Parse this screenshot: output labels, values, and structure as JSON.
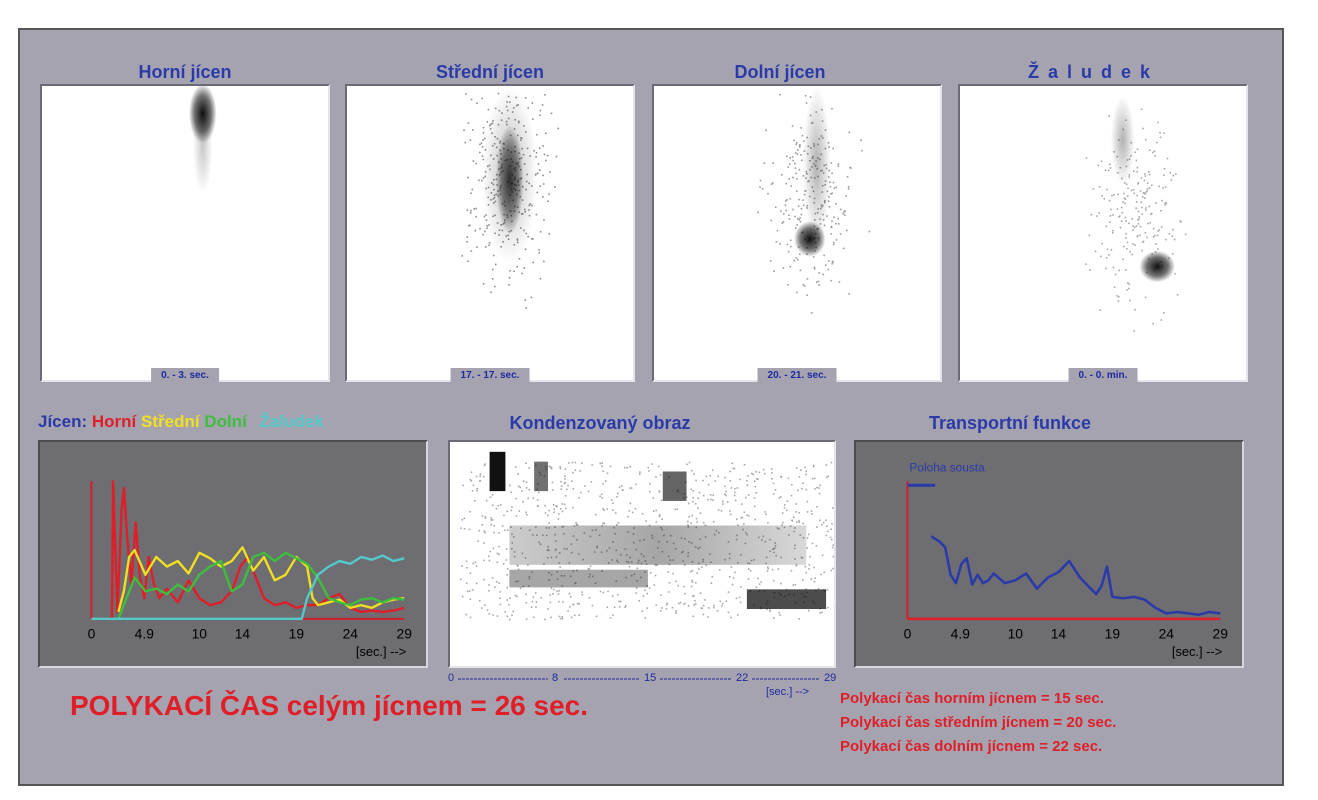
{
  "panels": [
    {
      "title": "Horní jícen",
      "range": "0. - 3. sec."
    },
    {
      "title": "Střední jícen",
      "range": "17. - 17. sec."
    },
    {
      "title": "Dolní jícen",
      "range": "20. - 21. sec."
    },
    {
      "title": "Ž a l u d e k",
      "range": "0. - 0. min."
    }
  ],
  "legend": {
    "prefix": "Jícen:",
    "items": [
      {
        "label": "Horní",
        "color": "#e01e28"
      },
      {
        "label": "Střední",
        "color": "#f0e020"
      },
      {
        "label": "Dolní",
        "color": "#3dbf3d"
      },
      {
        "label": "Žaludek",
        "color": "#54c9c9"
      }
    ]
  },
  "condensed": {
    "title": "Kondenzovaný obraz",
    "axis_ticks": [
      "0",
      "8",
      "15",
      "22",
      "29"
    ],
    "axis_unit": "[sec.] -->"
  },
  "transport": {
    "title": "Transportní funkce"
  },
  "summary": {
    "total": "POLYKACÍ ČAS celým jícnem  =   26 sec.",
    "lines": [
      "Polykací čas horním jícnem   = 15 sec.",
      "Polykací čas středním jícnem   = 20 sec.",
      "Polykací čas dolním jícnem    = 22 sec."
    ]
  },
  "chart_data": [
    {
      "type": "line",
      "xlabel": "[sec.] -->",
      "x_ticks": [
        "0",
        "4.9",
        "10",
        "14",
        "19",
        "24",
        "29"
      ],
      "xlim": [
        0,
        29
      ],
      "ylim": [
        0,
        1
      ],
      "series": [
        {
          "name": "Horní",
          "color": "#e01e28",
          "x": [
            0,
            1.5,
            1.9,
            2.0,
            2.4,
            2.8,
            3.0,
            3.3,
            3.7,
            4.1,
            4.5,
            4.9,
            5.3,
            5.8,
            6.3,
            7,
            8,
            9,
            10,
            11,
            12,
            13,
            13.8,
            14.5,
            15,
            16,
            17,
            18,
            19,
            20,
            21,
            22,
            23,
            24,
            25,
            26,
            27,
            28,
            29
          ],
          "y": [
            0,
            0,
            0.0,
            1.0,
            0.05,
            0.8,
            0.95,
            0.6,
            0.25,
            0.7,
            0.3,
            0.15,
            0.45,
            0.25,
            0.15,
            0.22,
            0.12,
            0.28,
            0.15,
            0.1,
            0.12,
            0.2,
            0.38,
            0.45,
            0.35,
            0.15,
            0.1,
            0.12,
            0.08,
            0.1,
            0.1,
            0.15,
            0.18,
            0.08,
            0.05,
            0.06,
            0.05,
            0.06,
            0.08
          ]
        },
        {
          "name": "Střední",
          "color": "#f0e020",
          "x": [
            2.5,
            3,
            3.5,
            4,
            5,
            6,
            7,
            8,
            9,
            10,
            11,
            12,
            13,
            14,
            15,
            16,
            17,
            18,
            19,
            20,
            20.5,
            21,
            22,
            23,
            24,
            25,
            26,
            27,
            28,
            29
          ],
          "y": [
            0.05,
            0.2,
            0.45,
            0.5,
            0.32,
            0.45,
            0.38,
            0.42,
            0.33,
            0.48,
            0.44,
            0.38,
            0.42,
            0.52,
            0.35,
            0.45,
            0.28,
            0.32,
            0.45,
            0.38,
            0.15,
            0.1,
            0.12,
            0.14,
            0.08,
            0.1,
            0.08,
            0.12,
            0.14,
            0.15
          ]
        },
        {
          "name": "Dolní",
          "color": "#3dbf3d",
          "x": [
            2.5,
            3,
            4,
            5,
            6,
            7,
            8,
            9,
            10,
            11,
            12,
            13,
            14,
            15,
            16,
            17,
            18,
            19,
            20,
            21,
            22,
            23,
            24,
            25,
            26,
            27,
            28,
            29
          ],
          "y": [
            0.0,
            0.1,
            0.3,
            0.2,
            0.22,
            0.18,
            0.25,
            0.2,
            0.32,
            0.38,
            0.42,
            0.2,
            0.25,
            0.45,
            0.48,
            0.42,
            0.48,
            0.44,
            0.4,
            0.3,
            0.15,
            0.12,
            0.1,
            0.14,
            0.15,
            0.12,
            0.15,
            0.14
          ]
        },
        {
          "name": "Žaludek",
          "color": "#54c9c9",
          "x": [
            0,
            19.5,
            20,
            21,
            22,
            23,
            24,
            25,
            26,
            27,
            28,
            29
          ],
          "y": [
            0,
            0.0,
            0.15,
            0.32,
            0.38,
            0.42,
            0.4,
            0.45,
            0.43,
            0.46,
            0.42,
            0.44
          ]
        }
      ]
    },
    {
      "type": "line",
      "xlabel": "[sec.] -->",
      "x_ticks": [
        "0",
        "4.9",
        "10",
        "14",
        "19",
        "24",
        "29"
      ],
      "xlim": [
        0,
        29
      ],
      "ylim": [
        0,
        1
      ],
      "annotation": "Poloha sousta",
      "series": [
        {
          "name": "Poloha sousta",
          "color": "#2a3aa8",
          "x": [
            2.2,
            3.0,
            3.5,
            4.0,
            4.5,
            5.0,
            5.5,
            6.0,
            6.5,
            7.0,
            7.5,
            8.0,
            9.0,
            10.0,
            11.0,
            12.0,
            13.0,
            14.0,
            15.0,
            16.0,
            17.0,
            17.5,
            18.0,
            18.5,
            19.0,
            20.0,
            21.0,
            22.0,
            23.0,
            24.0,
            25.0,
            26.0,
            27.0,
            28.0,
            29.0
          ],
          "y": [
            0.6,
            0.56,
            0.52,
            0.32,
            0.26,
            0.4,
            0.44,
            0.25,
            0.32,
            0.26,
            0.28,
            0.33,
            0.26,
            0.28,
            0.33,
            0.22,
            0.3,
            0.34,
            0.42,
            0.3,
            0.22,
            0.18,
            0.24,
            0.38,
            0.16,
            0.15,
            0.16,
            0.14,
            0.08,
            0.04,
            0.05,
            0.04,
            0.03,
            0.05,
            0.04
          ]
        },
        {
          "name": "",
          "color": "#e01e28",
          "x": [
            0,
            29
          ],
          "y": [
            0.0,
            0.0
          ]
        }
      ]
    }
  ]
}
